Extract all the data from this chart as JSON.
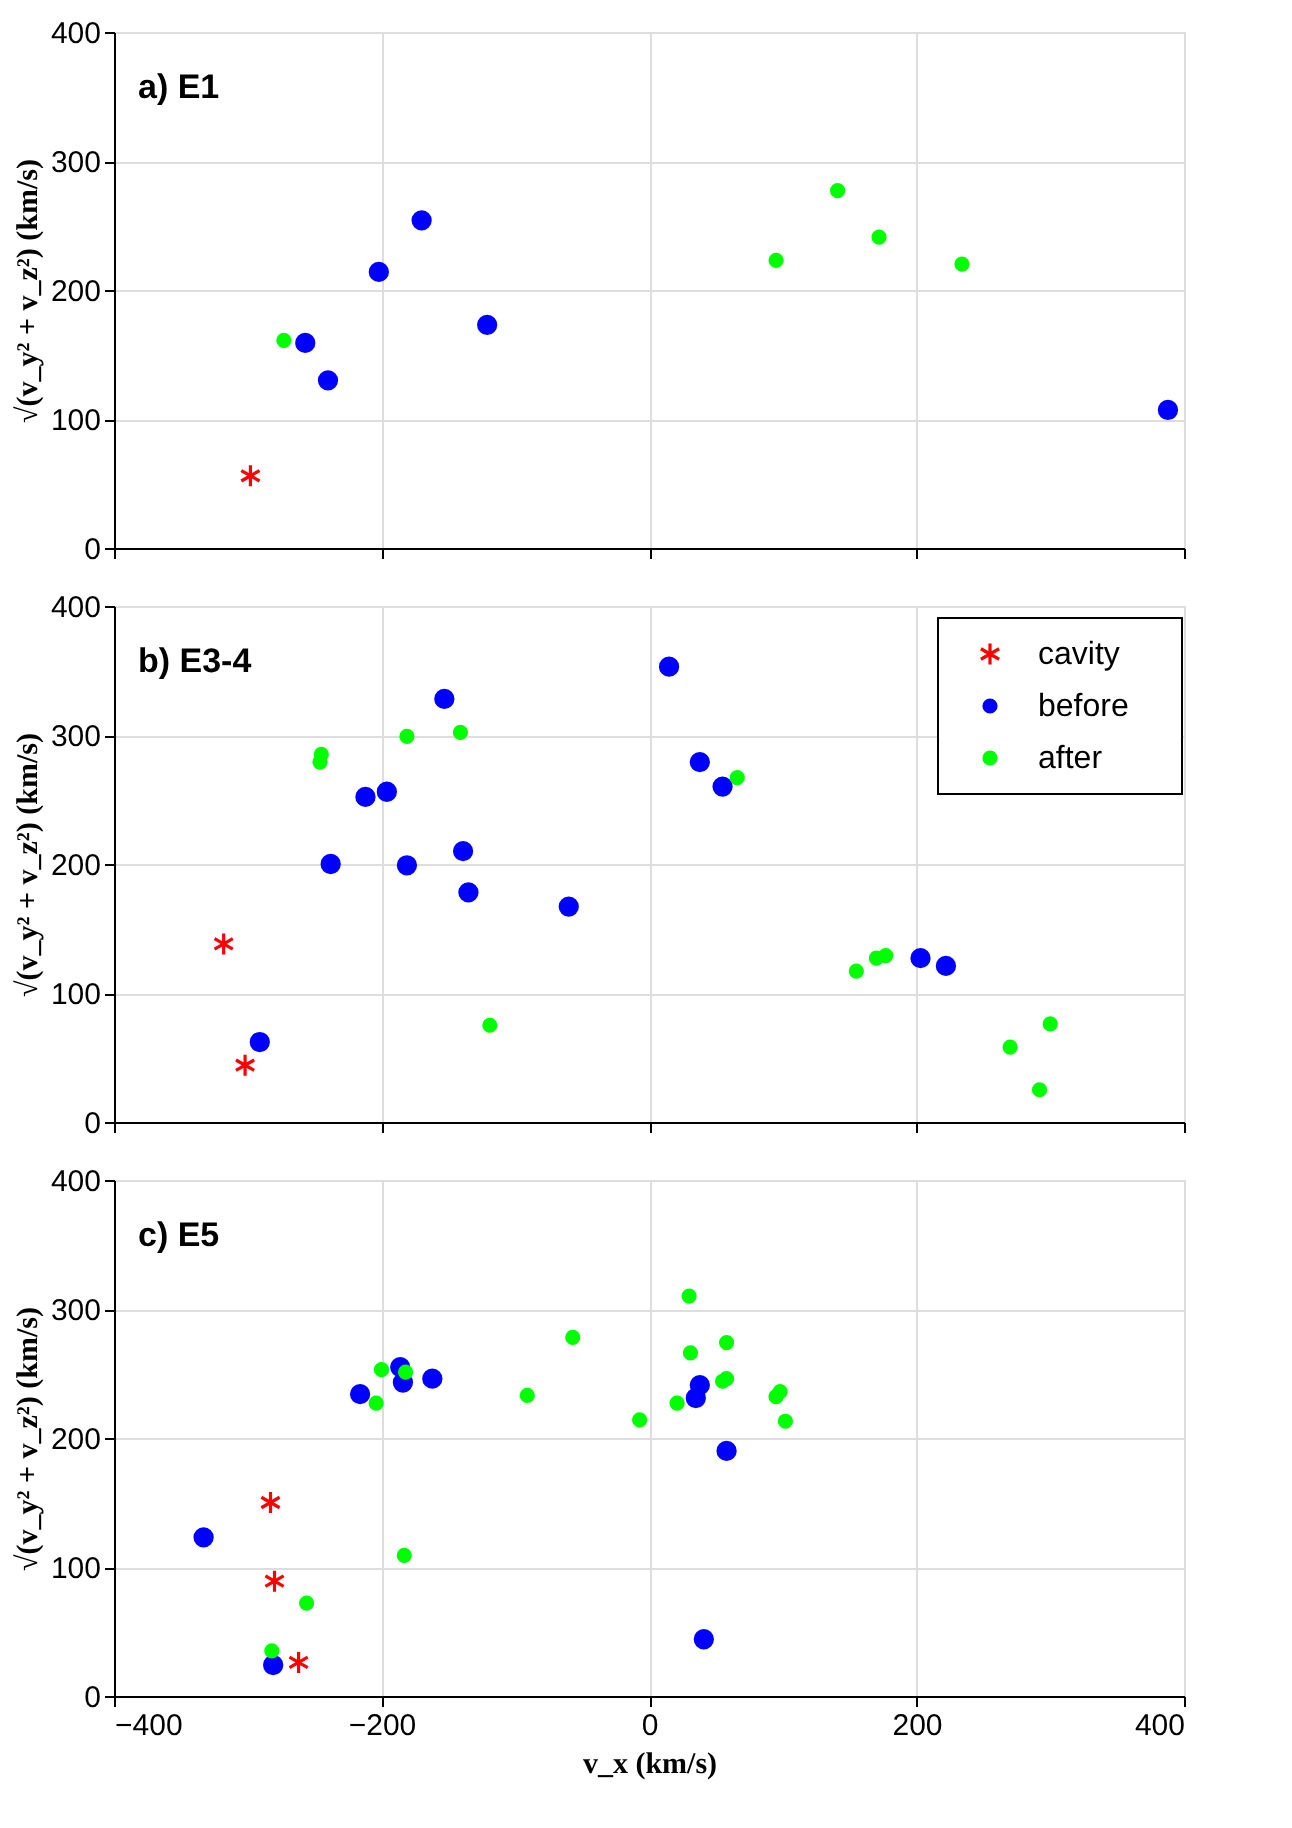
{
  "chart_data": [
    {
      "type": "scatter",
      "title": "a) E1",
      "ylabel": "√(v_y² + v_z²) (km/s)",
      "xlim": [
        -400,
        400
      ],
      "xticks": [
        -400,
        -200,
        0,
        200,
        400
      ],
      "ylim": [
        0,
        400
      ],
      "yticks": [
        0,
        100,
        200,
        300,
        400
      ],
      "grid": true,
      "tick_labels": "y",
      "legend": false,
      "series": [
        {
          "color": "#ff0000",
          "marker": "cross",
          "x": [
            -298
          ],
          "values": [
            56
          ]
        },
        {
          "color": "#0000ff",
          "marker": "circle",
          "x": [
            -257,
            -240,
            -202,
            -170,
            -121,
            388
          ],
          "values": [
            159,
            130,
            214,
            254,
            173,
            107
          ]
        },
        {
          "color": "#00ff00",
          "marker": "circle",
          "x": [
            -273,
            95,
            141,
            172,
            234
          ],
          "values": [
            161,
            223,
            277,
            241,
            220
          ]
        }
      ]
    },
    {
      "type": "scatter",
      "title": "b) E3-4",
      "ylabel": "√(v_y² + v_z²) (km/s)",
      "xlim": [
        -400,
        400
      ],
      "xticks": [
        -400,
        -200,
        0,
        200,
        400
      ],
      "ylim": [
        0,
        400
      ],
      "yticks": [
        0,
        100,
        200,
        300,
        400
      ],
      "grid": true,
      "tick_labels": "y",
      "legend": "top right",
      "series": [
        {
          "name": "cavity",
          "color": "#ff0000",
          "marker": "cross",
          "x": [
            -318,
            -302
          ],
          "values": [
            138,
            44
          ]
        },
        {
          "name": "before",
          "color": "#0000ff",
          "marker": "circle",
          "x": [
            -291,
            -238,
            -212,
            -196,
            -181,
            -153,
            -139,
            -135,
            -60,
            15,
            38,
            55,
            203,
            222
          ],
          "values": [
            62,
            200,
            252,
            256,
            199,
            328,
            210,
            178,
            167,
            353,
            279,
            260,
            127,
            121
          ]
        },
        {
          "name": "after",
          "color": "#00ff00",
          "marker": "circle",
          "x": [
            -245,
            -246,
            -181,
            -141,
            -119,
            66,
            155,
            170,
            177,
            270,
            300,
            292
          ],
          "values": [
            285,
            279,
            299,
            302,
            75,
            267,
            117,
            127,
            129,
            58,
            76,
            25
          ]
        }
      ]
    },
    {
      "type": "scatter",
      "title": "c) E5",
      "xlabel": "v_x (km/s)",
      "ylabel": "√(v_y² + v_z²) (km/s)",
      "xlim": [
        -400,
        400
      ],
      "xticks": [
        -400,
        -200,
        0,
        200,
        400
      ],
      "ylim": [
        0,
        400
      ],
      "yticks": [
        0,
        100,
        200,
        300,
        400
      ],
      "grid": true,
      "legend": false,
      "series": [
        {
          "color": "#ff0000",
          "marker": "cross",
          "x": [
            -283,
            -280,
            -262
          ],
          "values": [
            150,
            89,
            26
          ]
        },
        {
          "color": "#0000ff",
          "marker": "circle",
          "x": [
            -333,
            -281,
            -216,
            -186,
            -184,
            -162,
            38,
            35,
            58,
            41
          ],
          "values": [
            123,
            24,
            234,
            255,
            243,
            246,
            241,
            231,
            190,
            44
          ]
        },
        {
          "color": "#00ff00",
          "marker": "circle",
          "x": [
            -282,
            -256,
            -200,
            -204,
            -182,
            -183,
            -91,
            -57,
            -7,
            30,
            31,
            21,
            58,
            55,
            58,
            95,
            98,
            102
          ],
          "values": [
            35,
            72,
            253,
            227,
            251,
            109,
            233,
            278,
            214,
            310,
            266,
            227,
            274,
            244,
            246,
            232,
            236,
            213
          ]
        }
      ]
    }
  ]
}
